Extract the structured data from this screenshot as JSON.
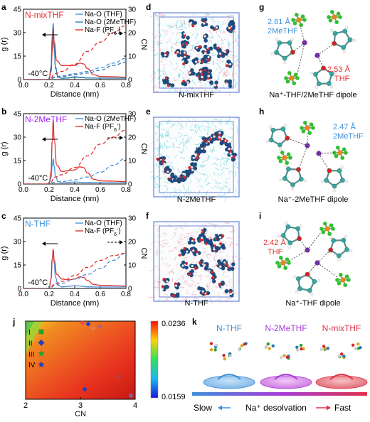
{
  "panel_letters": {
    "a": "a",
    "b": "b",
    "c": "c",
    "d": "d",
    "e": "e",
    "f": "f",
    "g": "g",
    "h": "h",
    "i": "i",
    "j": "j",
    "k": "k"
  },
  "rdf_axes": {
    "xlabel": "Distance (nm)",
    "ylabel_left": "g (r)",
    "ylabel_right": "CN",
    "x_ticks": [
      "0.0",
      "0.2",
      "0.4",
      "0.6",
      "0.8"
    ],
    "y_ticks_left": [
      "0",
      "15",
      "30",
      "45"
    ],
    "y_ticks_right": [
      "0",
      "10",
      "20",
      "30"
    ],
    "temperature": "-40°C"
  },
  "chart_data": [
    {
      "type": "line",
      "panel": "a",
      "title": "N-mixTHF",
      "xlabel": "Distance (nm)",
      "ylabel": "g (r)",
      "y2label": "CN",
      "xlim": [
        0,
        0.8
      ],
      "ylim": [
        0,
        45
      ],
      "y2lim": [
        0,
        30
      ],
      "annotation": "-40°C",
      "series": [
        {
          "name": "Na-O (THF)",
          "color": "#4a90d9",
          "axis": "left",
          "x": [
            0.16,
            0.2,
            0.215,
            0.225,
            0.232,
            0.24,
            0.25,
            0.27,
            0.3,
            0.35,
            0.4,
            0.45,
            0.5,
            0.6,
            0.7,
            0.8
          ],
          "y": [
            0,
            0,
            8,
            28,
            36,
            22,
            8,
            1.5,
            0.8,
            1.2,
            1.8,
            1.5,
            1.0,
            0.9,
            0.9,
            0.9
          ]
        },
        {
          "name": "Na-O (2MeTHF)",
          "color": "#2d7fb0",
          "axis": "left",
          "x": [
            0.16,
            0.2,
            0.215,
            0.225,
            0.232,
            0.24,
            0.25,
            0.27,
            0.3,
            0.35,
            0.4,
            0.45,
            0.5,
            0.6,
            0.7,
            0.8
          ],
          "y": [
            0,
            0,
            7,
            26,
            33,
            20,
            7,
            1.5,
            0.8,
            1.0,
            1.5,
            1.3,
            1.0,
            0.9,
            0.9,
            0.9
          ]
        },
        {
          "name": "Na-F (PF6-)",
          "color": "#e03030",
          "axis": "left",
          "x": [
            0.16,
            0.2,
            0.215,
            0.225,
            0.232,
            0.24,
            0.26,
            0.3,
            0.35,
            0.4,
            0.44,
            0.47,
            0.5,
            0.55,
            0.6,
            0.7,
            0.8
          ],
          "y": [
            0,
            0,
            5,
            18,
            32,
            24,
            12,
            9,
            9,
            9,
            10.5,
            10,
            7,
            3,
            2,
            1.8,
            1.5
          ]
        },
        {
          "name": "CN Na-O (THF)",
          "color": "#4a90d9",
          "axis": "right",
          "dashed": true,
          "x": [
            0.0,
            0.2,
            0.25,
            0.3,
            0.4,
            0.5,
            0.6,
            0.7,
            0.8
          ],
          "y": [
            0,
            0,
            1.2,
            1.6,
            2.5,
            3.5,
            5,
            7,
            9
          ]
        },
        {
          "name": "CN Na-O (2MeTHF)",
          "color": "#2d7fb0",
          "axis": "right",
          "dashed": true,
          "x": [
            0.0,
            0.2,
            0.25,
            0.3,
            0.4,
            0.5,
            0.6,
            0.7,
            0.8
          ],
          "y": [
            0,
            0,
            1.0,
            1.3,
            2.0,
            2.8,
            4,
            6,
            7.5
          ]
        },
        {
          "name": "CN Na-F",
          "color": "#e03030",
          "axis": "right",
          "dashed": true,
          "x": [
            0.0,
            0.2,
            0.25,
            0.3,
            0.4,
            0.5,
            0.6,
            0.7,
            0.8
          ],
          "y": [
            0,
            0,
            2.5,
            3.5,
            6.5,
            12,
            16,
            20,
            23
          ]
        }
      ]
    },
    {
      "type": "line",
      "panel": "b",
      "title": "N-2MeTHF",
      "xlabel": "Distance (nm)",
      "ylabel": "g (r)",
      "y2label": "CN",
      "xlim": [
        0,
        0.8
      ],
      "ylim": [
        0,
        45
      ],
      "y2lim": [
        0,
        30
      ],
      "annotation": "-40°C",
      "series": [
        {
          "name": "Na-O (2MeTHF)",
          "color": "#4a90d9",
          "axis": "left",
          "x": [
            0.16,
            0.2,
            0.215,
            0.225,
            0.232,
            0.24,
            0.25,
            0.27,
            0.3,
            0.35,
            0.4,
            0.45,
            0.5,
            0.6,
            0.7,
            0.8
          ],
          "y": [
            0,
            0,
            4,
            12,
            16,
            11,
            5,
            1.5,
            0.8,
            1.0,
            1.3,
            1.1,
            1.0,
            0.9,
            0.9,
            0.9
          ]
        },
        {
          "name": "Na-F (PF6-)",
          "color": "#e03030",
          "axis": "left",
          "x": [
            0.16,
            0.2,
            0.215,
            0.225,
            0.232,
            0.24,
            0.26,
            0.3,
            0.35,
            0.4,
            0.44,
            0.47,
            0.5,
            0.55,
            0.6,
            0.7,
            0.8
          ],
          "y": [
            0,
            0,
            8,
            28,
            41,
            28,
            12,
            8,
            8.5,
            9,
            11,
            10.5,
            7,
            3,
            2,
            1.8,
            1.5
          ]
        },
        {
          "name": "CN Na-O (2MeTHF)",
          "color": "#4a90d9",
          "axis": "right",
          "dashed": true,
          "x": [
            0.0,
            0.2,
            0.25,
            0.3,
            0.4,
            0.5,
            0.6,
            0.7,
            0.8
          ],
          "y": [
            0,
            0,
            0.8,
            1.1,
            1.8,
            3,
            5,
            8,
            11
          ]
        },
        {
          "name": "CN Na-F",
          "color": "#e03030",
          "axis": "right",
          "dashed": true,
          "x": [
            0.0,
            0.2,
            0.25,
            0.3,
            0.4,
            0.5,
            0.6,
            0.7,
            0.8
          ],
          "y": [
            0,
            0,
            3,
            4,
            7,
            12,
            17,
            20,
            23
          ]
        }
      ]
    },
    {
      "type": "line",
      "panel": "c",
      "title": "N-THF",
      "xlabel": "Distance (nm)",
      "ylabel": "g (r)",
      "y2label": "CN",
      "xlim": [
        0,
        0.8
      ],
      "ylim": [
        0,
        45
      ],
      "y2lim": [
        0,
        30
      ],
      "annotation": "-40°C",
      "series": [
        {
          "name": "Na-O (THF)",
          "color": "#4a90d9",
          "axis": "left",
          "x": [
            0.16,
            0.2,
            0.215,
            0.225,
            0.232,
            0.24,
            0.25,
            0.27,
            0.3,
            0.35,
            0.4,
            0.45,
            0.5,
            0.6,
            0.7,
            0.8
          ],
          "y": [
            0,
            0,
            6,
            19,
            24,
            16,
            7,
            2,
            1,
            1.3,
            1.8,
            1.5,
            1.0,
            0.9,
            0.9,
            0.9
          ]
        },
        {
          "name": "Na-F (PF6-)",
          "color": "#e03030",
          "axis": "left",
          "x": [
            0.16,
            0.2,
            0.215,
            0.225,
            0.232,
            0.24,
            0.26,
            0.3,
            0.35,
            0.4,
            0.44,
            0.47,
            0.5,
            0.55,
            0.6,
            0.7,
            0.8
          ],
          "y": [
            0,
            0,
            6,
            19,
            25,
            18,
            9,
            6,
            5.5,
            6,
            7.5,
            7,
            5,
            2.5,
            2,
            1.8,
            1.5
          ]
        },
        {
          "name": "CN Na-O (THF)",
          "color": "#4a90d9",
          "axis": "right",
          "dashed": true,
          "x": [
            0.0,
            0.2,
            0.25,
            0.3,
            0.4,
            0.5,
            0.6,
            0.7,
            0.8
          ],
          "y": [
            0,
            0,
            1.5,
            2.2,
            4,
            6,
            8.5,
            12,
            15
          ]
        },
        {
          "name": "CN Na-F",
          "color": "#e03030",
          "axis": "right",
          "dashed": true,
          "x": [
            0.0,
            0.2,
            0.25,
            0.3,
            0.4,
            0.5,
            0.6,
            0.7,
            0.8
          ],
          "y": [
            0,
            0,
            2,
            3,
            5.5,
            9,
            12,
            14,
            15
          ]
        }
      ]
    },
    {
      "type": "heatmap",
      "panel": "j",
      "xlabel": "CN",
      "x_ticks": [
        "2",
        "3",
        "4"
      ],
      "xlim": [
        2,
        4
      ],
      "colorbar_max": "0.0236",
      "colorbar_min": "0.0159",
      "labels": [
        "I",
        "II",
        "III",
        "IV"
      ],
      "markers": [
        {
          "label": "I",
          "cn": 2.25,
          "row": 0.1,
          "color": "#2ca02c",
          "shape": "square"
        },
        {
          "label": "II",
          "cn": 2.25,
          "row": 0.24,
          "color": "#1f3fbf",
          "shape": "diamond"
        },
        {
          "label": "III",
          "cn": 2.25,
          "row": 0.38,
          "color": "#2ca02c",
          "shape": "star"
        },
        {
          "label": "IV",
          "cn": 2.25,
          "row": 0.52,
          "color": "#1f3fbf",
          "shape": "star"
        }
      ]
    }
  ],
  "rdf_legends": {
    "a": [
      "Na-O (THF)",
      "Na-O (2MeTHF)",
      "Na-F (PF6-)"
    ],
    "b": [
      "Na-O (2MeTHF)",
      "Na-F (PF6-)"
    ],
    "c": [
      "Na-O (THF)",
      "Na-F (PF6-)"
    ]
  },
  "snapshots": {
    "d": "N-mixTHF",
    "e": "N-2MeTHF",
    "f": "N-THF"
  },
  "dipoles": {
    "g": {
      "caption": "Na⁺-THF/2MeTHF dipole",
      "dist1": "2.81 Å",
      "label1": "2MeTHF",
      "dist2": "2.53 Å",
      "label2": "THF"
    },
    "h": {
      "caption": "Na⁺-2MeTHF dipole",
      "dist1": "2.47 Å",
      "label1": "2MeTHF"
    },
    "i": {
      "caption": "Na⁺-THF dipole",
      "dist1": "2.42 Å",
      "label1": "THF"
    }
  },
  "scheme_k": {
    "labels": [
      "N-THF",
      "N-2MeTHF",
      "N-mixTHF"
    ],
    "label_colors": [
      "#3d8fd9",
      "#a63dd9",
      "#e0304a"
    ],
    "slow": "Slow",
    "middle": "Na⁺ desolvation",
    "fast": "Fast"
  },
  "colors": {
    "blue": "#4a90d9",
    "red": "#e03030",
    "purple": "#a020f0",
    "teal": "#2aa7a0",
    "pink": "#f0a0a8"
  }
}
